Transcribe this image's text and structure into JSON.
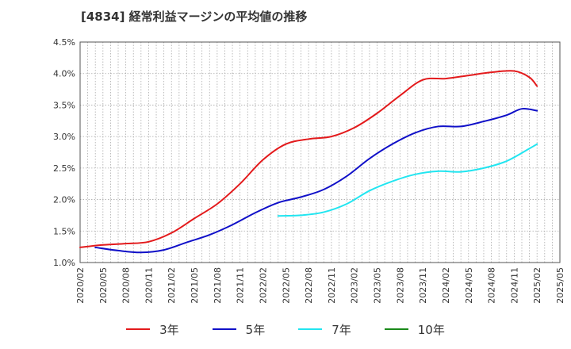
{
  "chart_data": {
    "type": "line",
    "title": "[4834]  経常利益マージンの平均値の推移",
    "xlabel": "",
    "ylabel": "",
    "ylim": [
      1.0,
      4.5
    ],
    "yticks": [
      "1.0%",
      "1.5%",
      "2.0%",
      "2.5%",
      "3.0%",
      "3.5%",
      "4.0%",
      "4.5%"
    ],
    "xticks": [
      "2020/02",
      "2020/05",
      "2020/08",
      "2020/11",
      "2021/02",
      "2021/05",
      "2021/08",
      "2021/11",
      "2022/02",
      "2022/05",
      "2022/08",
      "2022/11",
      "2023/02",
      "2023/05",
      "2023/08",
      "2023/11",
      "2024/02",
      "2024/05",
      "2024/08",
      "2024/11",
      "2025/02",
      "2025/05"
    ],
    "grid": true,
    "legend_position": "bottom",
    "series": [
      {
        "name": "3年",
        "color": "#e31a1c",
        "points": [
          [
            "2020/02",
            1.24
          ],
          [
            "2020/05",
            1.28
          ],
          [
            "2020/08",
            1.3
          ],
          [
            "2020/11",
            1.33
          ],
          [
            "2021/02",
            1.47
          ],
          [
            "2021/05",
            1.7
          ],
          [
            "2021/08",
            1.93
          ],
          [
            "2021/11",
            2.25
          ],
          [
            "2022/02",
            2.63
          ],
          [
            "2022/05",
            2.88
          ],
          [
            "2022/08",
            2.96
          ],
          [
            "2022/11",
            3.0
          ],
          [
            "2023/02",
            3.14
          ],
          [
            "2023/05",
            3.37
          ],
          [
            "2023/08",
            3.65
          ],
          [
            "2023/11",
            3.9
          ],
          [
            "2024/02",
            3.92
          ],
          [
            "2024/05",
            3.97
          ],
          [
            "2024/08",
            4.02
          ],
          [
            "2024/11",
            4.04
          ],
          [
            "2025/01",
            3.94
          ],
          [
            "2025/02",
            3.8
          ]
        ]
      },
      {
        "name": "5年",
        "color": "#1010c8",
        "points": [
          [
            "2020/04",
            1.24
          ],
          [
            "2020/07",
            1.19
          ],
          [
            "2020/10",
            1.16
          ],
          [
            "2021/01",
            1.2
          ],
          [
            "2021/04",
            1.32
          ],
          [
            "2021/07",
            1.44
          ],
          [
            "2021/10",
            1.6
          ],
          [
            "2022/01",
            1.79
          ],
          [
            "2022/04",
            1.95
          ],
          [
            "2022/07",
            2.04
          ],
          [
            "2022/10",
            2.16
          ],
          [
            "2023/01",
            2.37
          ],
          [
            "2023/04",
            2.65
          ],
          [
            "2023/07",
            2.88
          ],
          [
            "2023/10",
            3.06
          ],
          [
            "2024/01",
            3.16
          ],
          [
            "2024/04",
            3.16
          ],
          [
            "2024/07",
            3.24
          ],
          [
            "2024/10",
            3.34
          ],
          [
            "2024/12",
            3.44
          ],
          [
            "2025/02",
            3.41
          ]
        ]
      },
      {
        "name": "7年",
        "color": "#22e5f0",
        "points": [
          [
            "2022/04",
            1.74
          ],
          [
            "2022/07",
            1.75
          ],
          [
            "2022/10",
            1.8
          ],
          [
            "2023/01",
            1.93
          ],
          [
            "2023/04",
            2.14
          ],
          [
            "2023/07",
            2.29
          ],
          [
            "2023/10",
            2.4
          ],
          [
            "2024/01",
            2.45
          ],
          [
            "2024/04",
            2.44
          ],
          [
            "2024/07",
            2.5
          ],
          [
            "2024/10",
            2.61
          ],
          [
            "2025/01",
            2.81
          ],
          [
            "2025/02",
            2.88
          ]
        ]
      },
      {
        "name": "10年",
        "color": "#1a8a1a",
        "points": []
      }
    ]
  }
}
